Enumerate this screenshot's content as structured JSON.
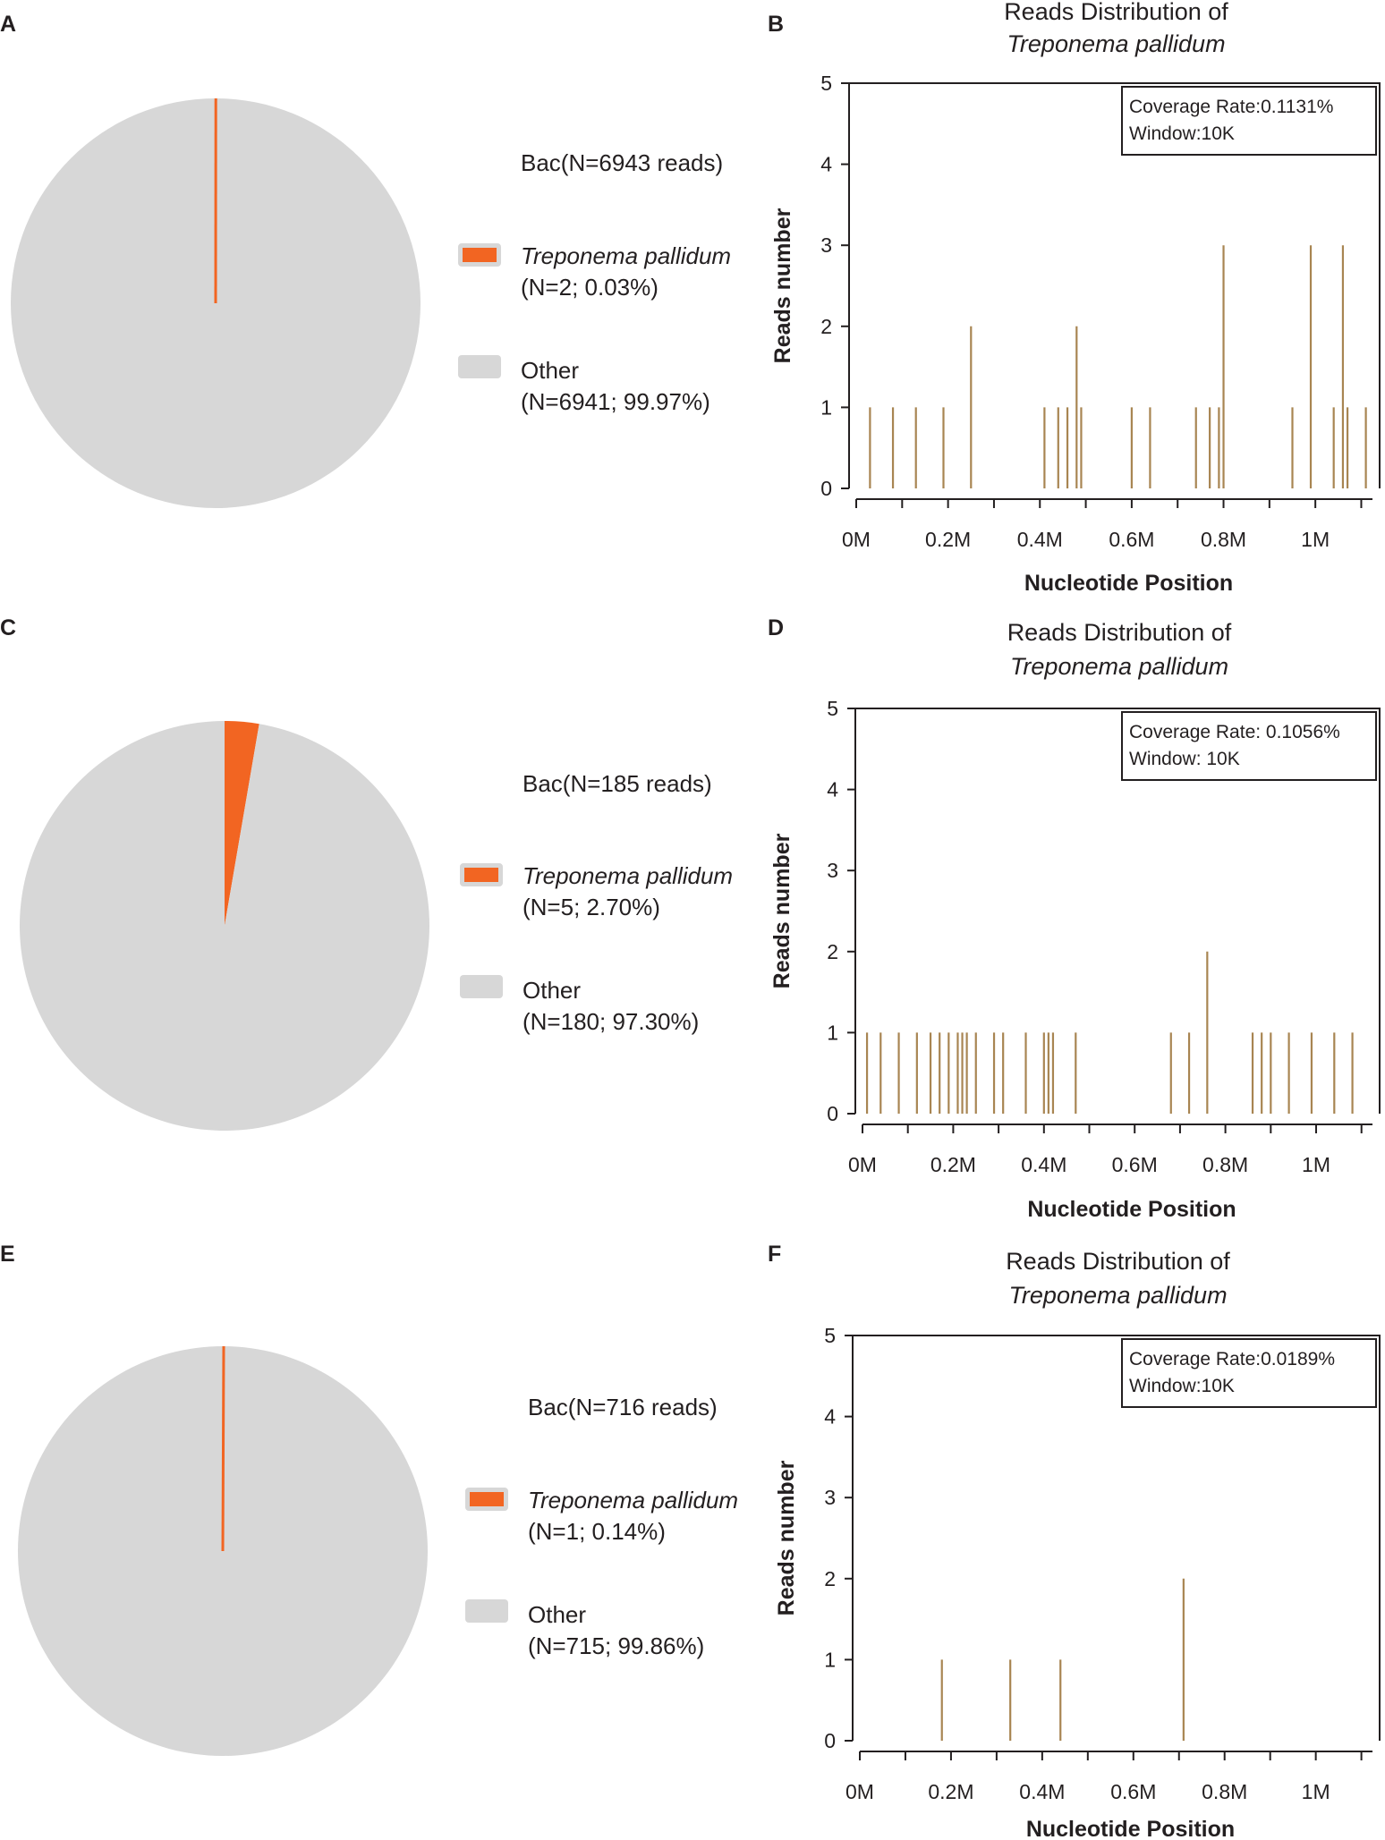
{
  "colors": {
    "tp": "#f26522",
    "other": "#d7d7d7",
    "bar": "#a88552",
    "axis": "#231f20"
  },
  "panels": [
    {
      "pie_letter": "A",
      "bar_letter": "B",
      "total_label": "Bac(N=6943 reads)",
      "legend": [
        {
          "name": "Treponema pallidum",
          "detail": "(N=2; 0.03%)"
        },
        {
          "name": "Other",
          "detail": "(N=6941; 99.97%)"
        }
      ]
    },
    {
      "pie_letter": "C",
      "bar_letter": "D",
      "total_label": "Bac(N=185 reads)",
      "legend": [
        {
          "name": "Treponema pallidum",
          "detail": "(N=5; 2.70%)"
        },
        {
          "name": "Other",
          "detail": "(N=180; 97.30%)"
        }
      ]
    },
    {
      "pie_letter": "E",
      "bar_letter": "F",
      "total_label": "Bac(N=716 reads)",
      "legend": [
        {
          "name": "Treponema pallidum",
          "detail": "(N=1; 0.14%)"
        },
        {
          "name": "Other",
          "detail": "(N=715; 99.86%)"
        }
      ]
    }
  ],
  "chart_data": [
    {
      "type": "pie",
      "panel": "A",
      "title": "Bac(N=6943 reads)",
      "slices": [
        {
          "label": "Treponema pallidum",
          "value": 2,
          "percent": 0.03
        },
        {
          "label": "Other",
          "value": 6941,
          "percent": 99.97
        }
      ]
    },
    {
      "type": "bar",
      "panel": "B",
      "title_line1": "Reads Distribution of",
      "title_line2": "Treponema pallidum",
      "xlabel": "Nucleotide Position",
      "ylabel": "Reads number",
      "xlim": [
        0,
        1.14
      ],
      "ylim": [
        0,
        5
      ],
      "x_ticks": [
        0,
        0.2,
        0.4,
        0.6,
        0.8,
        1.0
      ],
      "x_tick_labels": [
        "0M",
        "0.2M",
        "0.4M",
        "0.6M",
        "0.8M",
        "1M"
      ],
      "y_ticks": [
        0,
        1,
        2,
        3,
        4,
        5
      ],
      "annotation": [
        "Coverage Rate:0.1131%",
        "Window:10K"
      ],
      "x": [
        0.03,
        0.08,
        0.13,
        0.19,
        0.25,
        0.41,
        0.44,
        0.46,
        0.48,
        0.49,
        0.6,
        0.64,
        0.74,
        0.77,
        0.79,
        0.8,
        0.95,
        0.99,
        1.04,
        1.06,
        1.07,
        1.11
      ],
      "values": [
        1,
        1,
        1,
        1,
        2,
        1,
        1,
        1,
        2,
        1,
        1,
        1,
        1,
        1,
        1,
        3,
        1,
        3,
        1,
        3,
        1,
        1
      ]
    },
    {
      "type": "pie",
      "panel": "C",
      "title": "Bac(N=185 reads)",
      "slices": [
        {
          "label": "Treponema pallidum",
          "value": 5,
          "percent": 2.7
        },
        {
          "label": "Other",
          "value": 180,
          "percent": 97.3
        }
      ]
    },
    {
      "type": "bar",
      "panel": "D",
      "title_line1": "Reads Distribution of",
      "title_line2": "Treponema pallidum",
      "xlabel": "Nucleotide Position",
      "ylabel": "Reads number",
      "xlim": [
        0,
        1.14
      ],
      "ylim": [
        0,
        5
      ],
      "x_ticks": [
        0,
        0.2,
        0.4,
        0.6,
        0.8,
        1.0
      ],
      "x_tick_labels": [
        "0M",
        "0.2M",
        "0.4M",
        "0.6M",
        "0.8M",
        "1M"
      ],
      "y_ticks": [
        0,
        1,
        2,
        3,
        4,
        5
      ],
      "annotation": [
        "Coverage Rate: 0.1056%",
        "Window: 10K"
      ],
      "x": [
        0.01,
        0.04,
        0.08,
        0.12,
        0.15,
        0.17,
        0.19,
        0.21,
        0.22,
        0.23,
        0.25,
        0.29,
        0.31,
        0.36,
        0.4,
        0.41,
        0.42,
        0.47,
        0.68,
        0.72,
        0.76,
        0.86,
        0.88,
        0.9,
        0.94,
        0.99,
        1.04,
        1.08
      ],
      "values": [
        1,
        1,
        1,
        1,
        1,
        1,
        1,
        1,
        1,
        1,
        1,
        1,
        1,
        1,
        1,
        1,
        1,
        1,
        1,
        1,
        2,
        1,
        1,
        1,
        1,
        1,
        1,
        1
      ]
    },
    {
      "type": "pie",
      "panel": "E",
      "title": "Bac(N=716 reads)",
      "slices": [
        {
          "label": "Treponema pallidum",
          "value": 1,
          "percent": 0.14
        },
        {
          "label": "Other",
          "value": 715,
          "percent": 99.86
        }
      ]
    },
    {
      "type": "bar",
      "panel": "F",
      "title_line1": "Reads Distribution of",
      "title_line2": "Treponema pallidum",
      "xlabel": "Nucleotide Position",
      "ylabel": "Reads number",
      "xlim": [
        0,
        1.14
      ],
      "ylim": [
        0,
        5
      ],
      "x_ticks": [
        0,
        0.2,
        0.4,
        0.6,
        0.8,
        1.0
      ],
      "x_tick_labels": [
        "0M",
        "0.2M",
        "0.4M",
        "0.6M",
        "0.8M",
        "1M"
      ],
      "y_ticks": [
        0,
        1,
        2,
        3,
        4,
        5
      ],
      "annotation": [
        "Coverage Rate:0.0189%",
        "Window:10K"
      ],
      "x": [
        0.18,
        0.33,
        0.44,
        0.71
      ],
      "values": [
        1,
        1,
        1,
        2
      ]
    }
  ]
}
